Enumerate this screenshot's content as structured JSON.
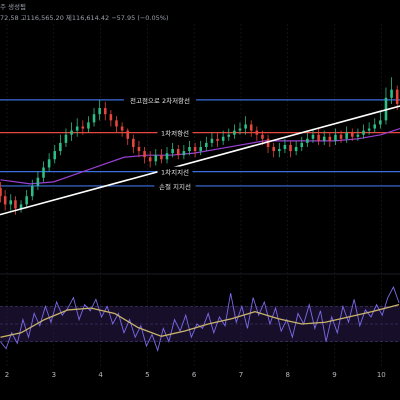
{
  "header": {
    "title_fragment": "주 생성됨",
    "ohlc_text": "72,58  고116,565.20  제116,614.42  −57.95 (−0.05%)",
    "close_text": "제116,614.42",
    "change_text": "−57.95 (−0.05%)"
  },
  "colors": {
    "background": "#000000",
    "up_candle": "#2ebd85",
    "down_candle": "#e5463d",
    "resistance_line": "#3b6fe0",
    "sma_line": "#9b3fd6",
    "trend_line": "#ffffff",
    "oscillator_line": "#7b6ae8",
    "oscillator_signal": "#c9b46a",
    "oscillator_band": "#2a1b4a"
  },
  "chart_data": [
    {
      "type": "candlestick",
      "title": "",
      "xlabel": "",
      "ylabel": "",
      "x_tick_labels": [
        "2",
        "3",
        "4",
        "5",
        "6",
        "7",
        "8",
        "9",
        "10"
      ],
      "x_tick_days": [
        2,
        3,
        4,
        5,
        6,
        7,
        8,
        9,
        10
      ],
      "x_range": [
        1.85,
        10.4
      ],
      "y_range": [
        108.0,
        120.0
      ],
      "y_scale_note": "price axis is off-frame; values in thousands (approx)",
      "levels": [
        {
          "name": "전고점으로 2차저항선",
          "value": 116.3,
          "color": "#3b6fe0"
        },
        {
          "name": "1차저항선",
          "value": 114.7,
          "color": "#e5463d"
        },
        {
          "name": "1차지지선",
          "value": 112.8,
          "color": "#3b6fe0"
        },
        {
          "name": "손절 지지선",
          "value": 112.1,
          "color": "#3b6fe0"
        }
      ],
      "trendline": {
        "x": [
          1.85,
          10.4
        ],
        "y": [
          110.7,
          116.0
        ]
      },
      "candles": {
        "days": [
          1.86,
          1.96,
          2.08,
          2.18,
          2.3,
          2.42,
          2.54,
          2.66,
          2.78,
          2.9,
          3.02,
          3.14,
          3.26,
          3.38,
          3.5,
          3.62,
          3.74,
          3.86,
          3.98,
          4.1,
          4.22,
          4.34,
          4.46,
          4.58,
          4.7,
          4.82,
          4.94,
          5.06,
          5.18,
          5.3,
          5.42,
          5.54,
          5.66,
          5.78,
          5.9,
          6.02,
          6.14,
          6.26,
          6.38,
          6.5,
          6.62,
          6.74,
          6.86,
          6.98,
          7.1,
          7.22,
          7.34,
          7.46,
          7.58,
          7.7,
          7.82,
          7.94,
          8.06,
          8.18,
          8.3,
          8.42,
          8.54,
          8.66,
          8.78,
          8.9,
          9.02,
          9.14,
          9.26,
          9.38,
          9.5,
          9.62,
          9.74,
          9.86,
          9.98,
          10.1,
          10.22,
          10.34
        ],
        "open": [
          112.0,
          111.6,
          111.2,
          111.4,
          111.0,
          111.2,
          111.6,
          112.1,
          112.5,
          113.0,
          113.4,
          113.8,
          114.2,
          114.6,
          114.8,
          115.0,
          114.9,
          115.2,
          115.6,
          115.9,
          115.6,
          115.3,
          115.0,
          114.8,
          114.4,
          114.0,
          113.8,
          113.5,
          113.3,
          113.6,
          113.4,
          113.7,
          113.9,
          113.6,
          113.8,
          114.0,
          113.8,
          114.0,
          114.2,
          114.4,
          114.3,
          114.5,
          114.6,
          114.8,
          114.9,
          115.1,
          114.8,
          114.6,
          114.4,
          114.0,
          113.8,
          113.9,
          114.1,
          113.8,
          114.0,
          114.2,
          114.4,
          114.6,
          114.3,
          114.5,
          114.3,
          114.6,
          114.4,
          114.7,
          114.5,
          114.6,
          114.8,
          114.9,
          115.1,
          115.3,
          116.4,
          116.8
        ],
        "close": [
          111.6,
          111.2,
          111.4,
          111.0,
          111.2,
          111.6,
          112.1,
          112.5,
          113.0,
          113.4,
          113.8,
          114.2,
          114.6,
          114.8,
          115.0,
          114.9,
          115.2,
          115.6,
          115.9,
          115.6,
          115.3,
          115.0,
          114.8,
          114.4,
          114.0,
          113.8,
          113.5,
          113.3,
          113.6,
          113.4,
          113.7,
          113.9,
          113.6,
          113.8,
          114.0,
          113.8,
          114.0,
          114.2,
          114.4,
          114.3,
          114.5,
          114.6,
          114.8,
          114.9,
          115.1,
          114.8,
          114.6,
          114.4,
          114.0,
          113.8,
          113.9,
          114.1,
          113.8,
          114.0,
          114.2,
          114.4,
          114.6,
          114.3,
          114.5,
          114.3,
          114.6,
          114.4,
          114.7,
          114.5,
          114.6,
          114.8,
          114.9,
          115.1,
          115.3,
          116.4,
          116.8,
          116.1
        ],
        "high": [
          112.3,
          111.9,
          111.7,
          111.6,
          111.4,
          111.9,
          112.4,
          112.8,
          113.3,
          113.7,
          114.1,
          114.6,
          114.9,
          115.2,
          115.4,
          115.3,
          115.5,
          115.9,
          116.3,
          116.2,
          115.8,
          115.5,
          115.2,
          114.9,
          114.6,
          114.3,
          114.0,
          113.8,
          113.9,
          113.9,
          114.0,
          114.2,
          114.1,
          114.1,
          114.3,
          114.2,
          114.3,
          114.5,
          114.7,
          114.7,
          114.8,
          114.9,
          115.1,
          115.2,
          115.5,
          115.3,
          115.0,
          114.8,
          114.6,
          114.2,
          114.2,
          114.4,
          114.3,
          114.3,
          114.5,
          114.7,
          114.9,
          114.9,
          114.8,
          114.7,
          114.9,
          114.8,
          115.0,
          114.9,
          114.9,
          115.1,
          115.2,
          115.4,
          115.7,
          116.9,
          117.4,
          117.0
        ],
        "low": [
          111.3,
          110.9,
          110.9,
          110.7,
          110.8,
          111.0,
          111.4,
          111.9,
          112.3,
          112.8,
          113.2,
          113.6,
          114.0,
          114.3,
          114.5,
          114.6,
          114.7,
          115.0,
          115.3,
          115.3,
          115.0,
          114.7,
          114.5,
          114.1,
          113.7,
          113.5,
          113.2,
          113.0,
          113.1,
          113.2,
          113.2,
          113.5,
          113.4,
          113.4,
          113.6,
          113.5,
          113.6,
          113.8,
          114.0,
          114.0,
          114.1,
          114.3,
          114.4,
          114.6,
          114.6,
          114.5,
          114.3,
          114.1,
          113.7,
          113.5,
          113.5,
          113.7,
          113.5,
          113.6,
          113.8,
          114.0,
          114.2,
          114.1,
          114.1,
          114.0,
          114.1,
          114.2,
          114.2,
          114.3,
          114.3,
          114.4,
          114.6,
          114.7,
          114.9,
          115.1,
          116.1,
          115.8
        ]
      },
      "sma": {
        "days": [
          1.86,
          2.5,
          3.0,
          3.5,
          4.0,
          4.5,
          5.0,
          5.5,
          6.0,
          6.5,
          7.0,
          7.5,
          8.0,
          8.5,
          9.0,
          9.5,
          10.0,
          10.4
        ],
        "values": [
          112.4,
          112.2,
          112.3,
          112.7,
          113.1,
          113.5,
          113.6,
          113.6,
          113.7,
          113.9,
          114.1,
          114.3,
          114.3,
          114.3,
          114.3,
          114.4,
          114.6,
          114.9
        ]
      }
    },
    {
      "type": "line",
      "title": "",
      "xlabel": "",
      "ylabel": "",
      "y_range": [
        0,
        100
      ],
      "band": [
        30,
        70
      ],
      "series": [
        {
          "color": "#7b6ae8",
          "x": [
            1.86,
            1.98,
            2.1,
            2.22,
            2.34,
            2.46,
            2.58,
            2.7,
            2.82,
            2.94,
            3.06,
            3.18,
            3.3,
            3.42,
            3.54,
            3.66,
            3.78,
            3.9,
            4.02,
            4.14,
            4.26,
            4.38,
            4.5,
            4.62,
            4.74,
            4.86,
            4.98,
            5.1,
            5.22,
            5.34,
            5.46,
            5.58,
            5.7,
            5.82,
            5.94,
            6.06,
            6.18,
            6.3,
            6.42,
            6.54,
            6.66,
            6.78,
            6.9,
            7.02,
            7.14,
            7.26,
            7.38,
            7.5,
            7.62,
            7.74,
            7.86,
            7.98,
            8.1,
            8.22,
            8.34,
            8.46,
            8.58,
            8.7,
            8.82,
            8.94,
            9.06,
            9.18,
            9.3,
            9.42,
            9.54,
            9.66,
            9.78,
            9.9,
            10.02,
            10.14,
            10.26,
            10.38
          ],
          "values": [
            30,
            22,
            40,
            28,
            55,
            35,
            62,
            48,
            70,
            52,
            75,
            60,
            68,
            80,
            55,
            72,
            65,
            78,
            58,
            70,
            50,
            62,
            40,
            55,
            35,
            48,
            25,
            38,
            20,
            45,
            30,
            55,
            42,
            60,
            35,
            50,
            45,
            62,
            40,
            58,
            48,
            85,
            52,
            70,
            45,
            80,
            60,
            75,
            50,
            68,
            42,
            55,
            35,
            62,
            50,
            72,
            45,
            65,
            30,
            58,
            40,
            70,
            52,
            78,
            48,
            66,
            58,
            72,
            60,
            80,
            92,
            74
          ]
        },
        {
          "color": "#c9b46a",
          "x": [
            1.86,
            2.3,
            2.8,
            3.3,
            3.8,
            4.3,
            4.8,
            5.3,
            5.8,
            6.3,
            6.8,
            7.3,
            7.8,
            8.3,
            8.8,
            9.3,
            9.8,
            10.38
          ],
          "values": [
            35,
            40,
            55,
            66,
            68,
            62,
            46,
            36,
            42,
            50,
            56,
            64,
            56,
            50,
            52,
            58,
            64,
            72
          ]
        }
      ]
    }
  ]
}
